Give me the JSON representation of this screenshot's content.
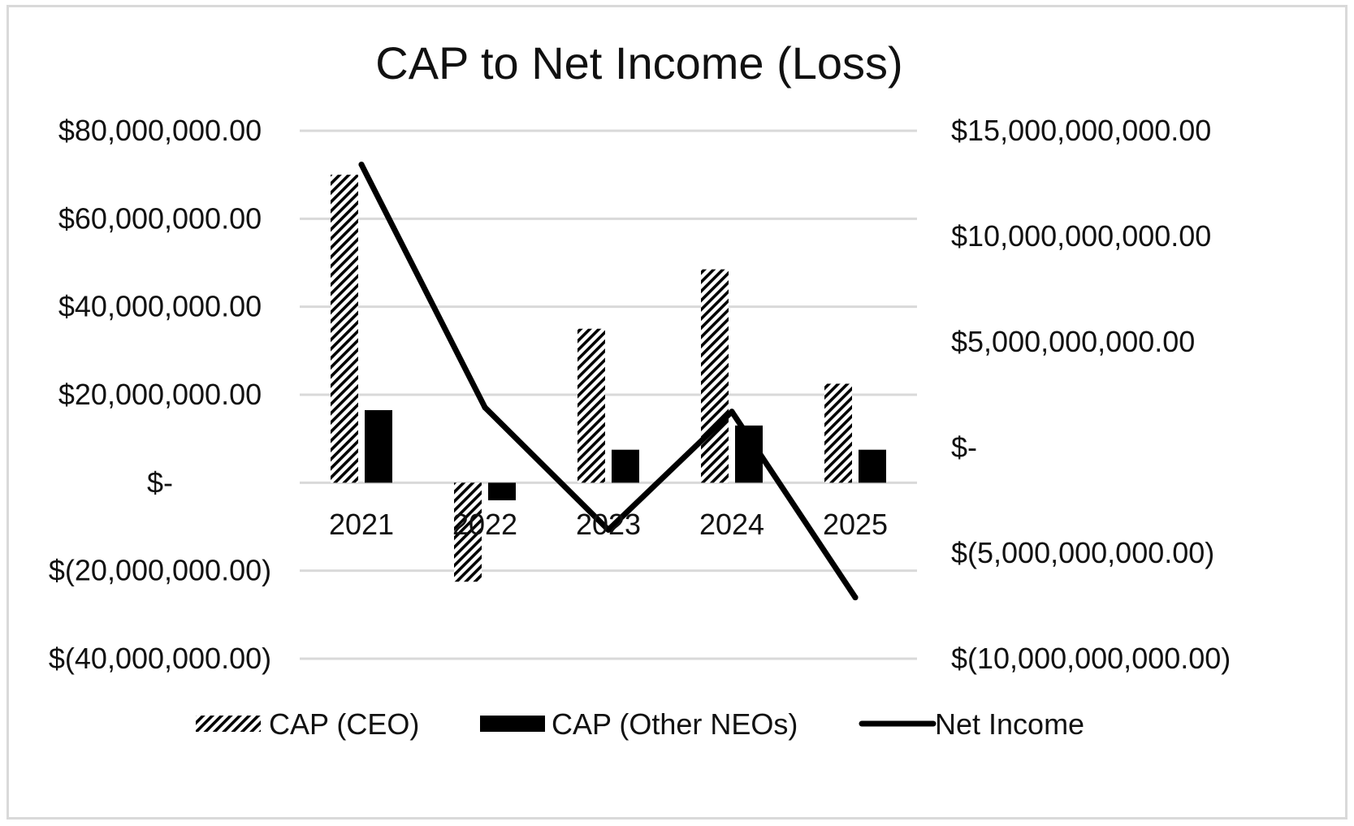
{
  "chart_data": {
    "type": "bar",
    "title": "CAP to Net Income (Loss)",
    "categories": [
      "2021",
      "2022",
      "2023",
      "2024",
      "2025"
    ],
    "series": [
      {
        "name": "CAP (CEO)",
        "type": "bar",
        "axis": "left",
        "fill": "hatch",
        "values": [
          70000000,
          -22500000,
          35000000,
          48500000,
          22500000
        ]
      },
      {
        "name": "CAP (Other NEOs)",
        "type": "bar",
        "axis": "left",
        "fill": "solid",
        "values": [
          16500000,
          -4000000,
          7500000,
          13000000,
          7500000
        ]
      },
      {
        "name": "Net Income",
        "type": "line",
        "axis": "right",
        "values": [
          13400000000,
          1900000000,
          -3900000000,
          1700000000,
          -7100000000
        ]
      }
    ],
    "y_left": {
      "range": [
        -40000000,
        80000000
      ],
      "ticks": [
        80000000,
        60000000,
        40000000,
        20000000,
        0,
        -20000000,
        -40000000
      ],
      "tick_labels": [
        "$80,000,000.00",
        "$60,000,000.00",
        "$40,000,000.00",
        "$20,000,000.00",
        "$-",
        "$(20,000,000.00)",
        "$(40,000,000.00)"
      ]
    },
    "y_right": {
      "range": [
        -10000000000,
        15000000000
      ],
      "ticks": [
        15000000000,
        10000000000,
        5000000000,
        0,
        -5000000000,
        -10000000000
      ],
      "tick_labels": [
        "$15,000,000,000.00",
        "$10,000,000,000.00",
        "$5,000,000,000.00",
        "$-",
        "$(5,000,000,000.00)",
        "$(10,000,000,000.00)"
      ]
    },
    "grid": true,
    "legend_position": "bottom",
    "colors": {
      "bars": "#000000",
      "line": "#000000",
      "grid": "#d9d9d9",
      "frame": "#d9d9d9"
    }
  }
}
